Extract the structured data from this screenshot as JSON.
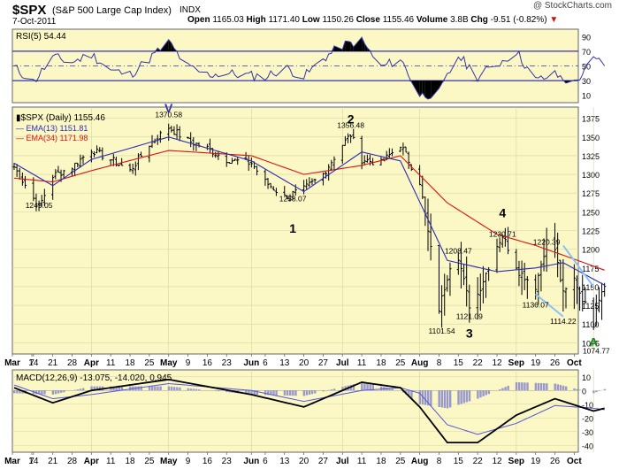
{
  "header": {
    "symbol": "$SPX",
    "name": "(S&P 500 Large Cap Index)",
    "exchange": "INDX",
    "date": "7-Oct-2011",
    "watermark": "@ StockCharts.com",
    "ohlc": {
      "open_label": "Open",
      "open": "1165.03",
      "high_label": "High",
      "high": "1171.40",
      "low_label": "Low",
      "low": "1150.26",
      "close_label": "Close",
      "close": "1155.46",
      "volume_label": "Volume",
      "volume": "3.8B",
      "chg_label": "Chg",
      "chg": "-9.51 (-0.82%)"
    }
  },
  "colors": {
    "panel_bg": "#fbf8c6",
    "price": "#000000",
    "ema13": "#2b2bb5",
    "ema34": "#dd1111",
    "rsi_line": "#3333aa",
    "macd": "#000000",
    "macd_signal": "#5555dd",
    "histogram": "#9999cc",
    "trendline": "#88c0ff",
    "wave_label": "#000000",
    "v_label": "#3333aa",
    "a_label": "#118811"
  },
  "chart_data": [
    {
      "type": "line",
      "panel": "rsi",
      "title": "RSI(5) 54.44",
      "ylim": [
        0,
        100
      ],
      "y_ticks": [
        10,
        30,
        50,
        70,
        90
      ],
      "reference_lines": [
        30,
        50,
        70
      ],
      "keypoints": [
        {
          "x": "Mar 7",
          "y": 48
        },
        {
          "x": "Mar 14",
          "y": 28
        },
        {
          "x": "Mar 21",
          "y": 62
        },
        {
          "x": "Mar 28",
          "y": 55
        },
        {
          "x": "Apr 4",
          "y": 66
        },
        {
          "x": "Apr 11",
          "y": 44
        },
        {
          "x": "Apr 18",
          "y": 38
        },
        {
          "x": "Apr 25",
          "y": 60
        },
        {
          "x": "May 2",
          "y": 82
        },
        {
          "x": "May 9",
          "y": 48
        },
        {
          "x": "May 16",
          "y": 38
        },
        {
          "x": "May 23",
          "y": 40
        },
        {
          "x": "Jun 6",
          "y": 35
        },
        {
          "x": "Jun 13",
          "y": 48
        },
        {
          "x": "Jun 20",
          "y": 35
        },
        {
          "x": "Jun 27",
          "y": 60
        },
        {
          "x": "Jul 4",
          "y": 78
        },
        {
          "x": "Jul 11",
          "y": 84
        },
        {
          "x": "Jul 18",
          "y": 48
        },
        {
          "x": "Jul 25",
          "y": 60
        },
        {
          "x": "Aug 1",
          "y": 10
        },
        {
          "x": "Aug 8",
          "y": 13
        },
        {
          "x": "Aug 15",
          "y": 64
        },
        {
          "x": "Aug 22",
          "y": 36
        },
        {
          "x": "Aug 29",
          "y": 52
        },
        {
          "x": "Sep 5",
          "y": 70
        },
        {
          "x": "Sep 12",
          "y": 30
        },
        {
          "x": "Sep 19",
          "y": 38
        },
        {
          "x": "Sep 26",
          "y": 26
        },
        {
          "x": "Oct 3",
          "y": 58
        },
        {
          "x": "Oct 7",
          "y": 54
        }
      ]
    },
    {
      "type": "ohlc",
      "panel": "price",
      "legend": [
        {
          "label": "$SPX (Daily) 1155.46",
          "color": "#000000"
        },
        {
          "label": "EMA(13) 1151.81",
          "color": "#2b2bb5"
        },
        {
          "label": "EMA(34) 1171.98",
          "color": "#dd1111"
        }
      ],
      "ylim": [
        1060,
        1390
      ],
      "y_ticks": [
        1075,
        1100,
        1125,
        1150,
        1175,
        1200,
        1225,
        1250,
        1275,
        1300,
        1325,
        1350,
        1375
      ],
      "x_ticks": [
        "Mar",
        "7",
        "14",
        "21",
        "28",
        "Apr",
        "11",
        "18",
        "25",
        "May",
        "9",
        "16",
        "23",
        "Jun",
        "6",
        "13",
        "20",
        "27",
        "Jul",
        "11",
        "18",
        "25",
        "Aug",
        "8",
        "15",
        "22",
        "Sep",
        "12",
        "19",
        "26",
        "Oct"
      ],
      "close_keypoints": [
        {
          "x": "Mar 7",
          "y": 1310
        },
        {
          "x": "Mar 16",
          "y": 1256
        },
        {
          "x": "Mar 21",
          "y": 1298
        },
        {
          "x": "Mar 28",
          "y": 1310
        },
        {
          "x": "Apr 4",
          "y": 1333
        },
        {
          "x": "Apr 11",
          "y": 1320
        },
        {
          "x": "Apr 18",
          "y": 1305
        },
        {
          "x": "Apr 25",
          "y": 1340
        },
        {
          "x": "May 2",
          "y": 1363
        },
        {
          "x": "May 9",
          "y": 1345
        },
        {
          "x": "May 16",
          "y": 1335
        },
        {
          "x": "May 23",
          "y": 1320
        },
        {
          "x": "Jun 1",
          "y": 1315
        },
        {
          "x": "Jun 6",
          "y": 1290
        },
        {
          "x": "Jun 13",
          "y": 1270
        },
        {
          "x": "Jun 20",
          "y": 1280
        },
        {
          "x": "Jun 27",
          "y": 1300
        },
        {
          "x": "Jul 4",
          "y": 1340
        },
        {
          "x": "Jul 7",
          "y": 1353
        },
        {
          "x": "Jul 11",
          "y": 1320
        },
        {
          "x": "Jul 18",
          "y": 1315
        },
        {
          "x": "Jul 25",
          "y": 1340
        },
        {
          "x": "Aug 1",
          "y": 1290
        },
        {
          "x": "Aug 5",
          "y": 1200
        },
        {
          "x": "Aug 8",
          "y": 1120
        },
        {
          "x": "Aug 12",
          "y": 1178
        },
        {
          "x": "Aug 15",
          "y": 1190
        },
        {
          "x": "Aug 19",
          "y": 1125
        },
        {
          "x": "Aug 22",
          "y": 1140
        },
        {
          "x": "Aug 29",
          "y": 1205
        },
        {
          "x": "Aug 31",
          "y": 1218
        },
        {
          "x": "Sep 6",
          "y": 1170
        },
        {
          "x": "Sep 12",
          "y": 1150
        },
        {
          "x": "Sep 16",
          "y": 1210
        },
        {
          "x": "Sep 19",
          "y": 1200
        },
        {
          "x": "Sep 22",
          "y": 1140
        },
        {
          "x": "Sep 26",
          "y": 1160
        },
        {
          "x": "Oct 3",
          "y": 1100
        },
        {
          "x": "Oct 4",
          "y": 1125
        },
        {
          "x": "Oct 7",
          "y": 1155
        }
      ],
      "ema13_keypoints": [
        {
          "x": "Mar 7",
          "y": 1315
        },
        {
          "x": "Mar 21",
          "y": 1285
        },
        {
          "x": "Apr 4",
          "y": 1320
        },
        {
          "x": "May 2",
          "y": 1350
        },
        {
          "x": "Jun 1",
          "y": 1318
        },
        {
          "x": "Jun 20",
          "y": 1277
        },
        {
          "x": "Jul 11",
          "y": 1330
        },
        {
          "x": "Jul 25",
          "y": 1318
        },
        {
          "x": "Aug 11",
          "y": 1185
        },
        {
          "x": "Aug 29",
          "y": 1170
        },
        {
          "x": "Sep 12",
          "y": 1175
        },
        {
          "x": "Sep 22",
          "y": 1182
        },
        {
          "x": "Oct 7",
          "y": 1152
        }
      ],
      "ema34_keypoints": [
        {
          "x": "Mar 7",
          "y": 1295
        },
        {
          "x": "Mar 21",
          "y": 1290
        },
        {
          "x": "Apr 4",
          "y": 1305
        },
        {
          "x": "May 2",
          "y": 1332
        },
        {
          "x": "Jun 1",
          "y": 1325
        },
        {
          "x": "Jun 20",
          "y": 1300
        },
        {
          "x": "Jul 11",
          "y": 1312
        },
        {
          "x": "Jul 25",
          "y": 1325
        },
        {
          "x": "Aug 11",
          "y": 1262
        },
        {
          "x": "Aug 29",
          "y": 1220
        },
        {
          "x": "Sep 12",
          "y": 1205
        },
        {
          "x": "Sep 22",
          "y": 1192
        },
        {
          "x": "Oct 7",
          "y": 1172
        }
      ],
      "price_labels": [
        {
          "text": "1249.05",
          "x": "Mar 16",
          "y": 1249.05
        },
        {
          "text": "1370.58",
          "x": "May 2",
          "y": 1370.58
        },
        {
          "text": "1258.07",
          "x": "Jun 16",
          "y": 1258.07
        },
        {
          "text": "1356.48",
          "x": "Jul 7",
          "y": 1356.48
        },
        {
          "text": "1101.54",
          "x": "Aug 9",
          "y": 1101.54
        },
        {
          "text": "1208.47",
          "x": "Aug 15",
          "y": 1208.47
        },
        {
          "text": "1121.09",
          "x": "Aug 19",
          "y": 1121.09
        },
        {
          "text": "1230.71",
          "x": "Aug 31",
          "y": 1230.71
        },
        {
          "text": "1136.07",
          "x": "Sep 12",
          "y": 1136.07
        },
        {
          "text": "1220.39",
          "x": "Sep 16",
          "y": 1220.39
        },
        {
          "text": "1114.22",
          "x": "Sep 22",
          "y": 1114.22
        },
        {
          "text": "1074.77",
          "x": "Oct 4",
          "y": 1074.77
        }
      ],
      "wave_labels": [
        {
          "text": "V",
          "x": "May 2",
          "y": 1383
        },
        {
          "text": "1",
          "x": "Jun 16",
          "y": 1222
        },
        {
          "text": "2",
          "x": "Jul 7",
          "y": 1368
        },
        {
          "text": "3",
          "x": "Aug 19",
          "y": 1082
        },
        {
          "text": "4",
          "x": "Aug 31",
          "y": 1243
        },
        {
          "text": "A",
          "x": "Oct 3",
          "y": 1070
        }
      ],
      "trendlines": [
        {
          "from": {
            "x": "Sep 22",
            "y": 1205
          },
          "to": {
            "x": "Oct 3",
            "y": 1150
          }
        },
        {
          "from": {
            "x": "Sep 12",
            "y": 1140
          },
          "to": {
            "x": "Sep 22",
            "y": 1110
          }
        }
      ]
    },
    {
      "type": "line",
      "panel": "macd",
      "title": "MACD(12,26,9) -13.075, -14.020, 0.945",
      "ylim": [
        -45,
        15
      ],
      "y_ticks": [
        -40,
        -30,
        -20,
        -10,
        0,
        10
      ],
      "macd_keypoints": [
        {
          "x": "Mar 7",
          "y": 2
        },
        {
          "x": "Mar 21",
          "y": -9
        },
        {
          "x": "Apr 4",
          "y": 0
        },
        {
          "x": "May 2",
          "y": 8
        },
        {
          "x": "Jun 1",
          "y": -3
        },
        {
          "x": "Jun 20",
          "y": -12
        },
        {
          "x": "Jul 11",
          "y": 6
        },
        {
          "x": "Jul 25",
          "y": 2
        },
        {
          "x": "Aug 1",
          "y": -12
        },
        {
          "x": "Aug 11",
          "y": -38
        },
        {
          "x": "Aug 22",
          "y": -38
        },
        {
          "x": "Sep 5",
          "y": -18
        },
        {
          "x": "Sep 19",
          "y": -6
        },
        {
          "x": "Oct 3",
          "y": -15
        },
        {
          "x": "Oct 7",
          "y": -13
        }
      ],
      "signal_keypoints": [
        {
          "x": "Mar 7",
          "y": 4
        },
        {
          "x": "Mar 21",
          "y": -6
        },
        {
          "x": "Apr 4",
          "y": -3
        },
        {
          "x": "May 2",
          "y": 5
        },
        {
          "x": "Jun 1",
          "y": 0
        },
        {
          "x": "Jun 20",
          "y": -8
        },
        {
          "x": "Jul 11",
          "y": 0
        },
        {
          "x": "Jul 25",
          "y": 2
        },
        {
          "x": "Aug 1",
          "y": -2
        },
        {
          "x": "Aug 11",
          "y": -25
        },
        {
          "x": "Aug 22",
          "y": -32
        },
        {
          "x": "Sep 5",
          "y": -24
        },
        {
          "x": "Sep 19",
          "y": -11
        },
        {
          "x": "Oct 3",
          "y": -13
        },
        {
          "x": "Oct 7",
          "y": -14
        }
      ]
    }
  ]
}
